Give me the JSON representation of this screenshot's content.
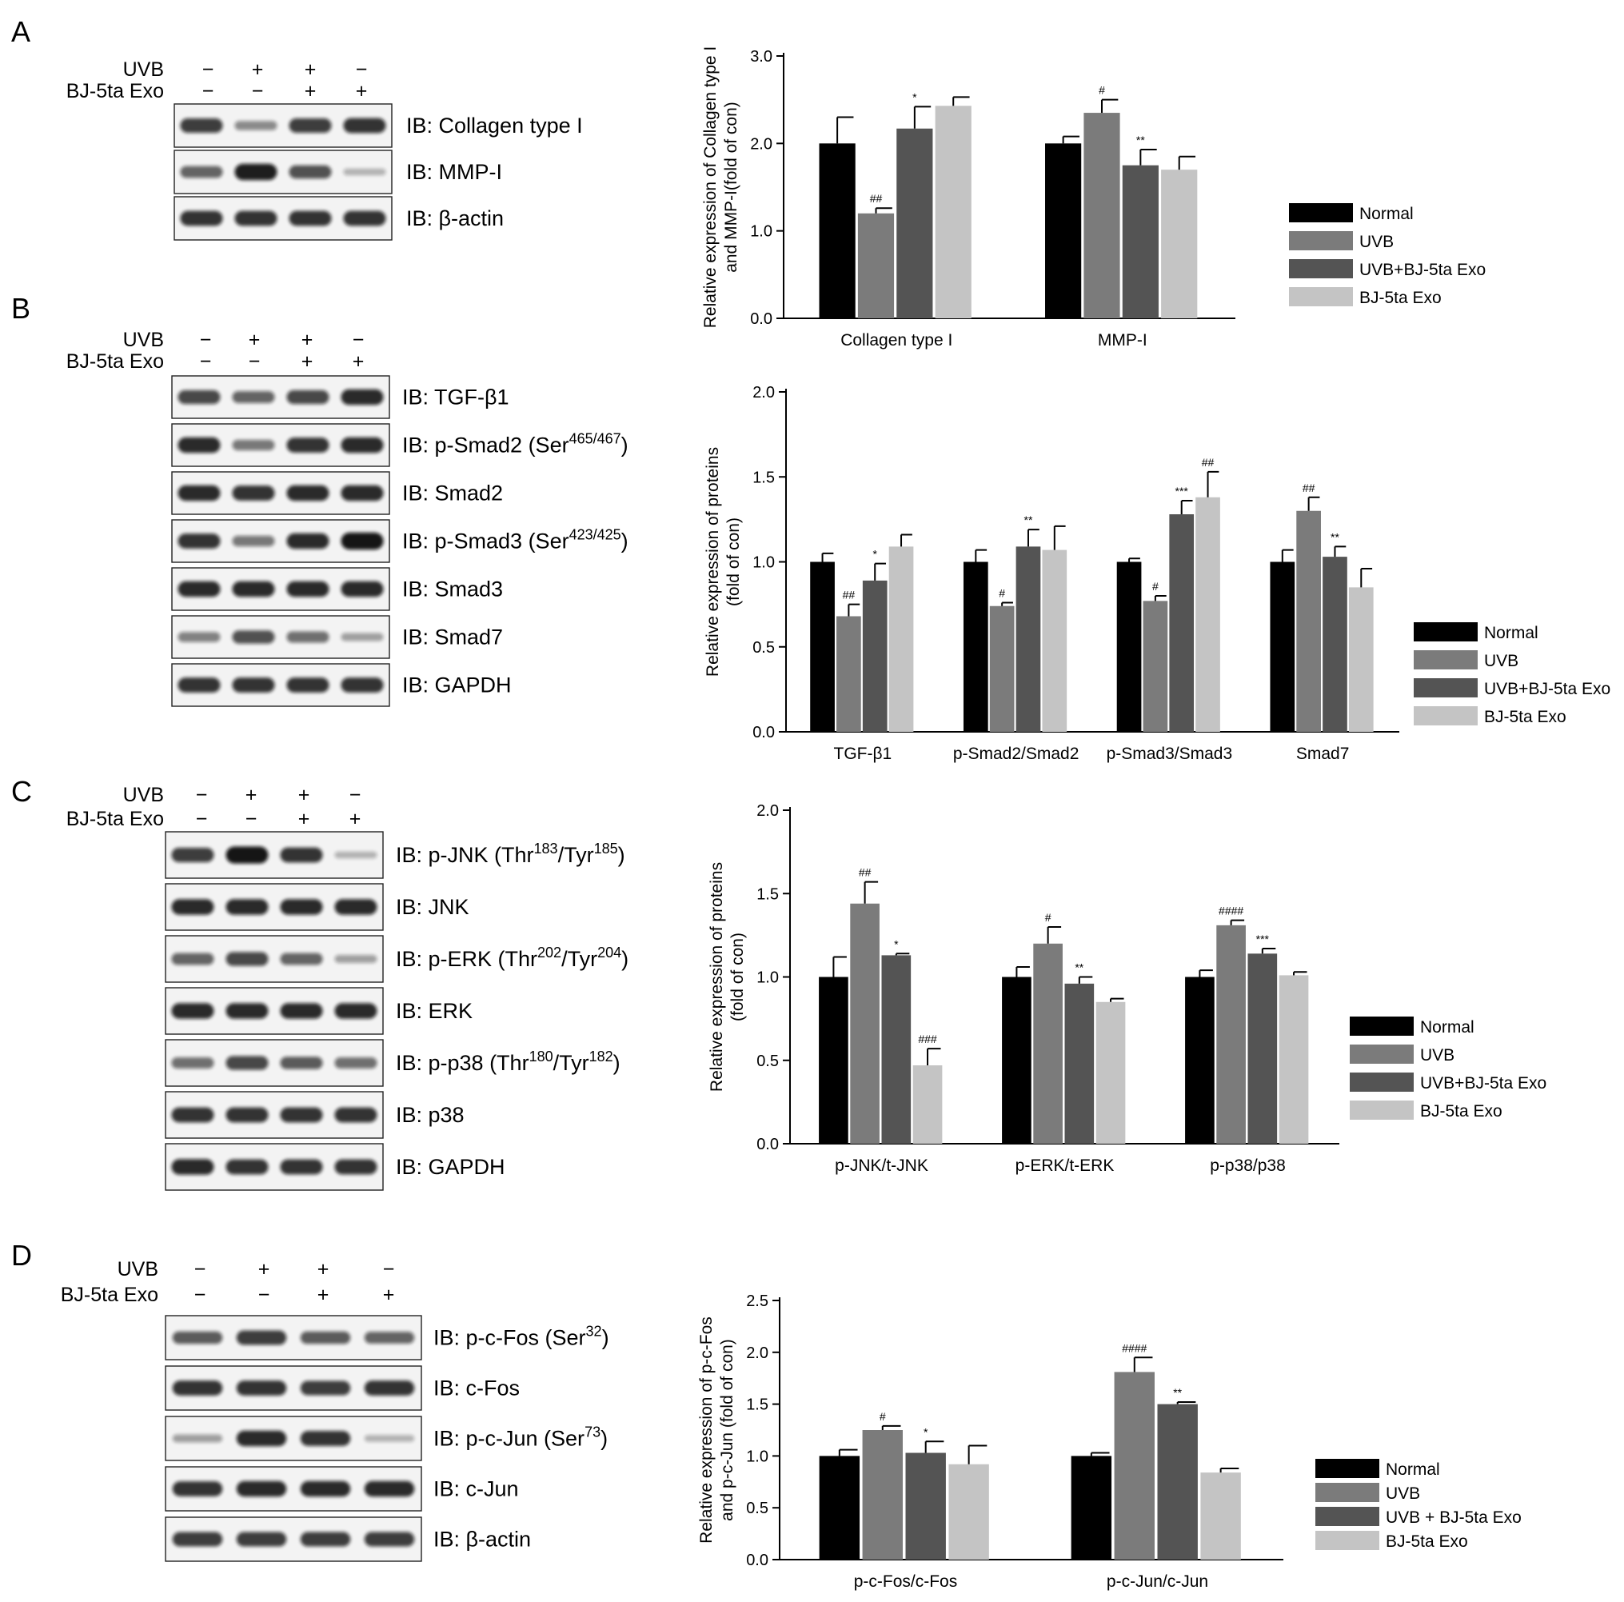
{
  "legend_groups": [
    "Normal",
    "UVB",
    "UVB+BJ-5ta Exo",
    "BJ-5ta Exo"
  ],
  "colors": {
    "Normal": "#000000",
    "UVB": "#7b7b7b",
    "UVB+BJ-5ta Exo": "#545454",
    "BJ-5ta Exo": "#c4c4c4",
    "blot_bg": "#f3f3f3",
    "band": "#111111"
  },
  "panels": [
    {
      "letter": "A",
      "treatment": {
        "rows": [
          {
            "label": "UVB",
            "signs": [
              "−",
              "+",
              "+",
              "−"
            ]
          },
          {
            "label": "BJ-5ta Exo",
            "signs": [
              "−",
              "−",
              "+",
              "+"
            ]
          }
        ]
      },
      "blots": [
        {
          "label": "IB: Collagen type I",
          "intensity": [
            0.75,
            0.35,
            0.75,
            0.8
          ]
        },
        {
          "label": "IB: MMP-I",
          "intensity": [
            0.55,
            0.9,
            0.65,
            0.15
          ]
        },
        {
          "label": "IB: β-actin",
          "intensity": [
            0.8,
            0.8,
            0.8,
            0.8
          ]
        }
      ],
      "chart_data": {
        "type": "bar",
        "ylabel": "Relative expression of Collagen type I and MMP-I(fold of con)",
        "ylabel_lines": [
          "Relative expression of Collagen type I",
          "and MMP-I(fold of con)"
        ],
        "ylim": [
          0,
          3.0
        ],
        "yticks": [
          "0.0",
          "1.0",
          "2.0",
          "3.0"
        ],
        "categories": [
          "Collagen type I",
          "MMP-I"
        ],
        "legend_labels": [
          "Normal",
          "UVB",
          "UVB+BJ-5ta Exo",
          "BJ-5ta Exo"
        ],
        "series": [
          {
            "name": "Normal",
            "values": [
              2.0,
              2.0
            ],
            "errors": [
              0.3,
              0.08
            ],
            "marks": [
              "",
              ""
            ]
          },
          {
            "name": "UVB",
            "values": [
              1.2,
              2.35
            ],
            "errors": [
              0.06,
              0.15
            ],
            "marks": [
              "##",
              "#"
            ]
          },
          {
            "name": "UVB+BJ-5ta Exo",
            "values": [
              2.17,
              1.75
            ],
            "errors": [
              0.25,
              0.18
            ],
            "marks": [
              "*",
              "**"
            ]
          },
          {
            "name": "BJ-5ta Exo",
            "values": [
              2.43,
              1.7
            ],
            "errors": [
              0.1,
              0.15
            ],
            "marks": [
              "",
              ""
            ]
          }
        ]
      }
    },
    {
      "letter": "B",
      "treatment": {
        "rows": [
          {
            "label": "UVB",
            "signs": [
              "−",
              "+",
              "+",
              "−"
            ]
          },
          {
            "label": "BJ-5ta Exo",
            "signs": [
              "−",
              "−",
              "+",
              "+"
            ]
          }
        ]
      },
      "blots": [
        {
          "label": "IB: TGF-β1",
          "intensity": [
            0.7,
            0.55,
            0.7,
            0.85
          ]
        },
        {
          "label": "IB: p-Smad2 (Ser",
          "sup": "465/467",
          "label_end": ")",
          "intensity": [
            0.85,
            0.45,
            0.8,
            0.85
          ]
        },
        {
          "label": "IB: Smad2",
          "intensity": [
            0.85,
            0.8,
            0.85,
            0.85
          ]
        },
        {
          "label": "IB: p-Smad3 (Ser",
          "sup": "423/425",
          "label_end": ")",
          "intensity": [
            0.8,
            0.45,
            0.85,
            0.95
          ]
        },
        {
          "label": "IB: Smad3",
          "intensity": [
            0.85,
            0.85,
            0.85,
            0.85
          ]
        },
        {
          "label": "IB: Smad7",
          "intensity": [
            0.4,
            0.65,
            0.5,
            0.25
          ]
        },
        {
          "label": "IB: GAPDH",
          "intensity": [
            0.8,
            0.8,
            0.8,
            0.8
          ]
        }
      ],
      "chart_data": {
        "type": "bar",
        "ylabel": "Relative expression of proteins (fold of con)",
        "ylabel_lines": [
          "Relative expression of proteins",
          "(fold of con)"
        ],
        "ylim": [
          0,
          2.0
        ],
        "yticks": [
          "0.0",
          "0.5",
          "1.0",
          "1.5",
          "2.0"
        ],
        "categories": [
          "TGF-β1",
          "p-Smad2/Smad2",
          "p-Smad3/Smad3",
          "Smad7"
        ],
        "legend_labels": [
          "Normal",
          "UVB",
          "UVB+BJ-5ta Exo",
          "BJ-5ta Exo"
        ],
        "series": [
          {
            "name": "Normal",
            "values": [
              1.0,
              1.0,
              1.0,
              1.0
            ],
            "errors": [
              0.05,
              0.07,
              0.02,
              0.07
            ],
            "marks": [
              "",
              "",
              "",
              ""
            ]
          },
          {
            "name": "UVB",
            "values": [
              0.68,
              0.74,
              0.77,
              1.3
            ],
            "errors": [
              0.07,
              0.02,
              0.03,
              0.08
            ],
            "marks": [
              "##",
              "#",
              "#",
              "##"
            ]
          },
          {
            "name": "UVB+BJ-5ta Exo",
            "values": [
              0.89,
              1.09,
              1.28,
              1.03
            ],
            "errors": [
              0.1,
              0.1,
              0.08,
              0.06
            ],
            "marks": [
              "*",
              "**",
              "***",
              "**"
            ]
          },
          {
            "name": "BJ-5ta Exo",
            "values": [
              1.09,
              1.07,
              1.38,
              0.85
            ],
            "errors": [
              0.07,
              0.14,
              0.15,
              0.11
            ],
            "marks": [
              "",
              "",
              "##",
              ""
            ]
          }
        ]
      }
    },
    {
      "letter": "C",
      "treatment": {
        "rows": [
          {
            "label": "UVB",
            "signs": [
              "−",
              "+",
              "+",
              "−"
            ]
          },
          {
            "label": "BJ-5ta Exo",
            "signs": [
              "−",
              "−",
              "+",
              "+"
            ]
          }
        ]
      },
      "blots": [
        {
          "label": "IB: p-JNK (Thr",
          "sup": "183",
          "mid": "/Tyr",
          "sup2": "185",
          "label_end": ")",
          "intensity": [
            0.75,
            0.95,
            0.8,
            0.15
          ]
        },
        {
          "label": "IB: JNK",
          "intensity": [
            0.85,
            0.85,
            0.85,
            0.85
          ]
        },
        {
          "label": "IB: p-ERK (Thr",
          "sup": "202",
          "mid": "/Tyr",
          "sup2": "204",
          "label_end": ")",
          "intensity": [
            0.55,
            0.7,
            0.55,
            0.25
          ]
        },
        {
          "label": "IB: ERK",
          "intensity": [
            0.85,
            0.85,
            0.85,
            0.85
          ]
        },
        {
          "label": "IB: p-p38 (Thr",
          "sup": "180",
          "mid": "/Tyr",
          "sup2": "182",
          "label_end": ")",
          "intensity": [
            0.5,
            0.7,
            0.6,
            0.5
          ]
        },
        {
          "label": "IB: p38",
          "intensity": [
            0.8,
            0.8,
            0.8,
            0.8
          ]
        },
        {
          "label": "IB: GAPDH",
          "intensity": [
            0.85,
            0.8,
            0.8,
            0.8
          ]
        }
      ],
      "chart_data": {
        "type": "bar",
        "ylabel": "Relative expression of proteins (fold of con)",
        "ylabel_lines": [
          "Relative expression of proteins",
          "(fold of con)"
        ],
        "ylim": [
          0,
          2.0
        ],
        "yticks": [
          "0.0",
          "0.5",
          "1.0",
          "1.5",
          "2.0"
        ],
        "categories": [
          "p-JNK/t-JNK",
          "p-ERK/t-ERK",
          "p-p38/p38"
        ],
        "legend_labels": [
          "Normal",
          "UVB",
          "UVB+BJ-5ta Exo",
          "BJ-5ta Exo"
        ],
        "series": [
          {
            "name": "Normal",
            "values": [
              1.0,
              1.0,
              1.0
            ],
            "errors": [
              0.12,
              0.06,
              0.04
            ],
            "marks": [
              "",
              "",
              ""
            ]
          },
          {
            "name": "UVB",
            "values": [
              1.44,
              1.2,
              1.31
            ],
            "errors": [
              0.13,
              0.1,
              0.03
            ],
            "marks": [
              "##",
              "#",
              "####"
            ]
          },
          {
            "name": "UVB+BJ-5ta Exo",
            "values": [
              1.13,
              0.96,
              1.14
            ],
            "errors": [
              0.01,
              0.04,
              0.03
            ],
            "marks": [
              "*",
              "**",
              "***"
            ]
          },
          {
            "name": "BJ-5ta Exo",
            "values": [
              0.47,
              0.85,
              1.01
            ],
            "errors": [
              0.1,
              0.02,
              0.02
            ],
            "marks": [
              "###",
              "",
              ""
            ]
          }
        ]
      }
    },
    {
      "letter": "D",
      "treatment": {
        "rows": [
          {
            "label": "UVB",
            "signs": [
              "−",
              "+",
              "+",
              "−"
            ]
          },
          {
            "label": "BJ-5ta Exo",
            "signs": [
              "−",
              "−",
              "+",
              "+"
            ]
          }
        ]
      },
      "blots": [
        {
          "label": "IB: p-c-Fos (Ser",
          "sup": "32",
          "label_end": ")",
          "intensity": [
            0.6,
            0.75,
            0.6,
            0.55
          ]
        },
        {
          "label": "IB: c-Fos",
          "intensity": [
            0.8,
            0.8,
            0.75,
            0.8
          ]
        },
        {
          "label": "IB: p-c-Jun (Ser",
          "sup": "73",
          "label_end": ")",
          "intensity": [
            0.25,
            0.85,
            0.8,
            0.15
          ]
        },
        {
          "label": "IB: c-Jun",
          "intensity": [
            0.8,
            0.85,
            0.85,
            0.85
          ]
        },
        {
          "label": "IB: β-actin",
          "intensity": [
            0.75,
            0.75,
            0.75,
            0.75
          ]
        }
      ],
      "chart_data": {
        "type": "bar",
        "ylabel": "Relative expression of p-c-Fos and p-c-Jun (fold of con)",
        "ylabel_lines": [
          "Relative expression of p-c-Fos",
          "and p-c-Jun (fold of con)"
        ],
        "ylim": [
          0,
          2.5
        ],
        "yticks": [
          "0.0",
          "0.5",
          "1.0",
          "1.5",
          "2.0",
          "2.5"
        ],
        "categories": [
          "p-c-Fos/c-Fos",
          "p-c-Jun/c-Jun"
        ],
        "legend_labels": [
          "Normal",
          "UVB",
          "UVB + BJ-5ta Exo",
          "BJ-5ta Exo"
        ],
        "series": [
          {
            "name": "Normal",
            "values": [
              1.0,
              1.0
            ],
            "errors": [
              0.06,
              0.03
            ],
            "marks": [
              "",
              ""
            ]
          },
          {
            "name": "UVB",
            "values": [
              1.25,
              1.81
            ],
            "errors": [
              0.04,
              0.14
            ],
            "marks": [
              "#",
              "####"
            ]
          },
          {
            "name": "UVB+BJ-5ta Exo",
            "values": [
              1.03,
              1.5
            ],
            "errors": [
              0.11,
              0.02
            ],
            "marks": [
              "*",
              "**"
            ]
          },
          {
            "name": "BJ-5ta Exo",
            "values": [
              0.92,
              0.84
            ],
            "errors": [
              0.18,
              0.04
            ],
            "marks": [
              "",
              ""
            ]
          }
        ]
      }
    }
  ]
}
